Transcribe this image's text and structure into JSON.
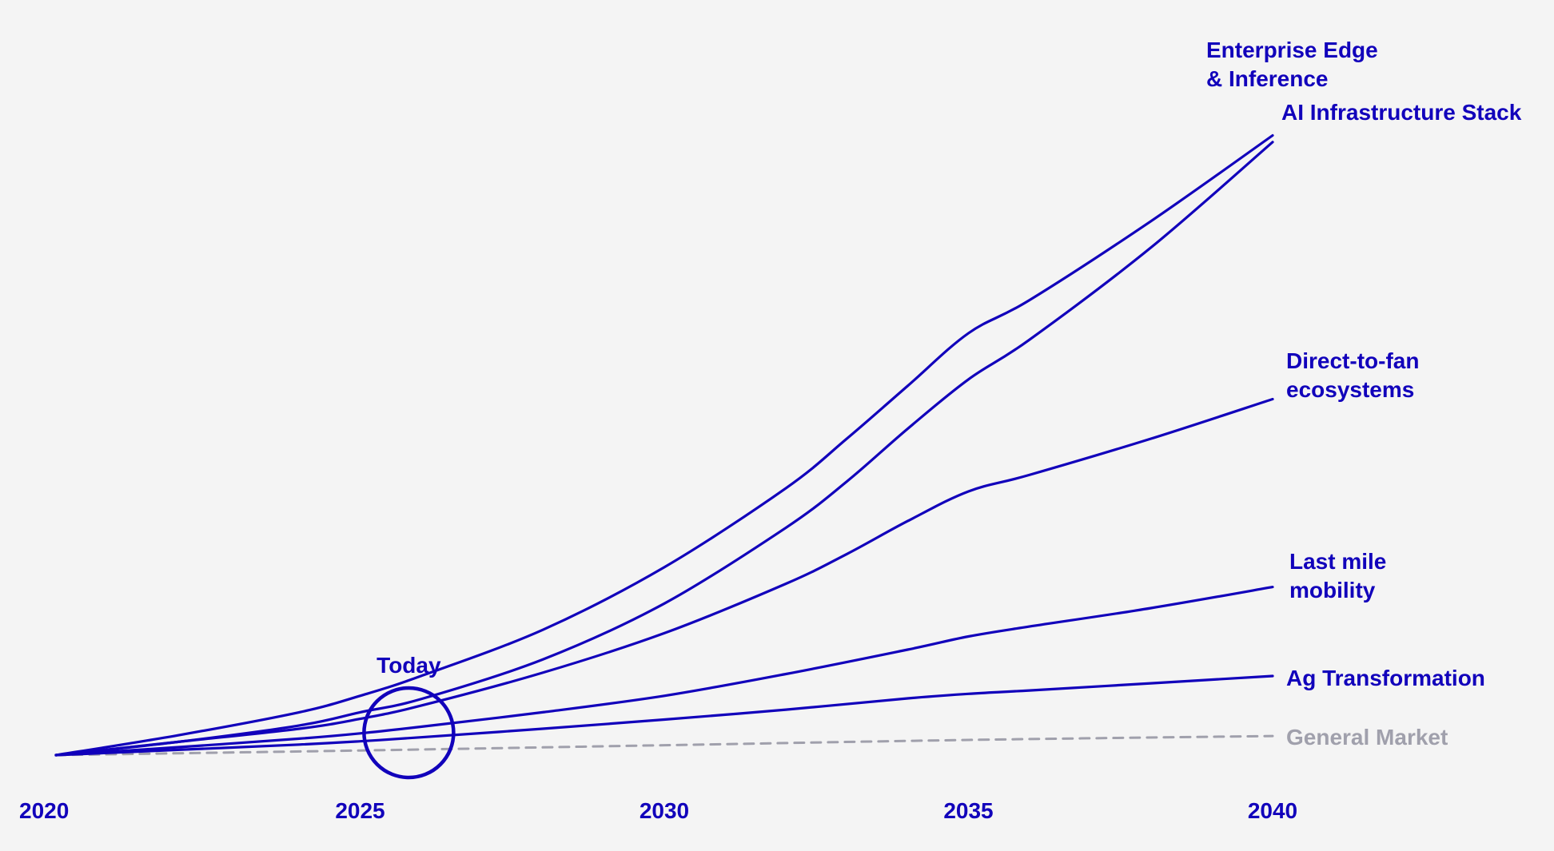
{
  "colors": {
    "background": "#f4f4f4",
    "primary": "#1100bb",
    "muted": "#a0a0ac"
  },
  "chart_data": {
    "type": "line",
    "title": "",
    "xlabel": "",
    "ylabel": "",
    "xlim": [
      2020,
      2040
    ],
    "ylim": [
      0,
      100
    ],
    "x_ticks": [
      "2020",
      "2025",
      "2030",
      "2035",
      "2040"
    ],
    "grid": false,
    "legend": "labels at line ends (right)",
    "annotation": {
      "label": "Today",
      "x": 2025.8
    },
    "series": [
      {
        "name": "Enterprise Edge\n& Inference",
        "style": "solid",
        "x": [
          2020,
          2022,
          2024,
          2025,
          2026,
          2028,
          2030,
          2032,
          2033,
          2034,
          2035,
          2036,
          2038,
          2040
        ],
        "values": [
          0,
          3,
          6.5,
          9,
          12,
          19,
          28.5,
          40.5,
          48,
          56,
          64,
          69,
          81,
          94
        ]
      },
      {
        "name": "AI Infrastructure Stack",
        "style": "solid",
        "x": [
          2020,
          2022,
          2024,
          2025,
          2026,
          2028,
          2030,
          2032,
          2033,
          2034,
          2035,
          2036,
          2038,
          2040
        ],
        "values": [
          0,
          2,
          4.5,
          6.5,
          8.5,
          14.5,
          23,
          34.5,
          41.5,
          49.5,
          57,
          63,
          77,
          93
        ]
      },
      {
        "name": "Direct-to-fan\necosystems",
        "style": "solid",
        "x": [
          2020,
          2022,
          2024,
          2025,
          2026,
          2028,
          2030,
          2032,
          2033,
          2034,
          2035,
          2036,
          2038,
          2040
        ],
        "values": [
          0,
          2,
          4,
          5.5,
          7.5,
          12.5,
          18.5,
          26,
          30.5,
          35.5,
          40,
          42.5,
          48,
          54
        ]
      },
      {
        "name": "Last mile\nmobility",
        "style": "solid",
        "x": [
          2020,
          2022,
          2024,
          2025,
          2026,
          2028,
          2030,
          2032,
          2034,
          2035,
          2036,
          2038,
          2040
        ],
        "values": [
          0,
          1.2,
          2.5,
          3.3,
          4.3,
          6.5,
          9,
          12.3,
          16,
          18,
          19.5,
          22.3,
          25.5
        ]
      },
      {
        "name": "Ag Transformation",
        "style": "solid",
        "x": [
          2020,
          2022,
          2024,
          2025,
          2026,
          2028,
          2030,
          2032,
          2034,
          2035,
          2036,
          2038,
          2040
        ],
        "values": [
          0,
          0.8,
          1.6,
          2.1,
          2.7,
          4,
          5.4,
          6.9,
          8.6,
          9.3,
          9.8,
          10.9,
          12
        ]
      },
      {
        "name": "General Market",
        "style": "dashed",
        "x": [
          2020,
          2025,
          2030,
          2035,
          2040
        ],
        "values": [
          0,
          0.7,
          1.5,
          2.3,
          2.9
        ]
      }
    ]
  }
}
